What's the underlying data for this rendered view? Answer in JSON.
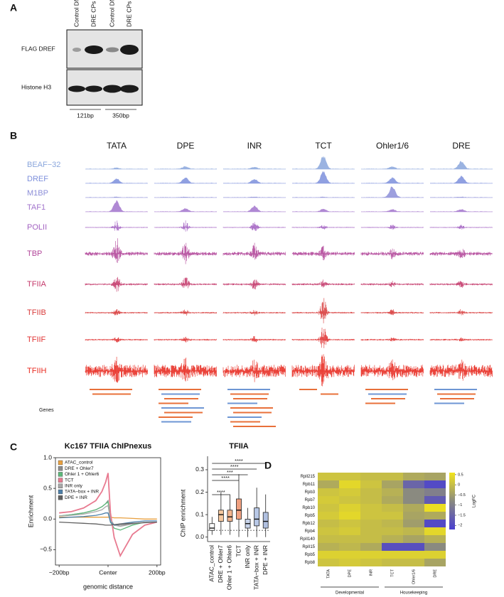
{
  "panel_labels": [
    "A",
    "B",
    "C",
    "D"
  ],
  "panel_a": {
    "lanes": [
      "Control DNA",
      "DRE CPs",
      "Control DNA",
      "DRE CPs"
    ],
    "rows": [
      "FLAG DREF",
      "Histone H3"
    ],
    "sizes": [
      "121bp",
      "350bp"
    ]
  },
  "panel_b": {
    "columns": [
      "TATA",
      "DPE",
      "INR",
      "TCT",
      "Ohler1/6",
      "DRE"
    ],
    "tracks": [
      {
        "name": "BEAF−32",
        "color": "#8aa6dc",
        "peaks": [
          0.1,
          0.2,
          0.15,
          1.0,
          0.2,
          0.6
        ]
      },
      {
        "name": "DREF",
        "color": "#7d8fdc",
        "peaks": [
          0.4,
          0.5,
          0.35,
          1.0,
          0.5,
          0.6
        ]
      },
      {
        "name": "M1BP",
        "color": "#8c8ed8",
        "peaks": [
          0.05,
          0.05,
          0.05,
          0.05,
          1.0,
          0.05
        ]
      },
      {
        "name": "TAF1",
        "color": "#a274cc",
        "peaks": [
          1.0,
          0.3,
          0.5,
          0.25,
          0.2,
          0.2
        ]
      },
      {
        "name": "POLII",
        "color": "#a362c2",
        "peaks": [
          0.8,
          0.8,
          0.7,
          0.3,
          0.3,
          0.3
        ]
      },
      {
        "name": "TBP",
        "color": "#b2479a",
        "peaks": [
          1.0,
          0.7,
          0.6,
          0.4,
          0.3,
          0.3
        ]
      },
      {
        "name": "TFIIA",
        "color": "#c4386a",
        "peaks": [
          0.8,
          0.7,
          0.5,
          0.3,
          0.2,
          0.3
        ]
      },
      {
        "name": "TFIIB",
        "color": "#d83a3a",
        "peaks": [
          0.2,
          0.2,
          0.2,
          1.0,
          0.2,
          0.2
        ]
      },
      {
        "name": "TFIIF",
        "color": "#e03232",
        "peaks": [
          0.2,
          0.2,
          0.2,
          1.0,
          0.1,
          0.1
        ]
      },
      {
        "name": "TFIIH",
        "color": "#e82a20",
        "peaks": [
          0.6,
          0.5,
          0.4,
          1.0,
          0.4,
          0.4
        ]
      }
    ],
    "genes_label": "Genes"
  },
  "chart_data": [
    {
      "type": "line",
      "title": "Kc167 TFIIA ChIPnexus",
      "xlabel": "genomic distance",
      "ylabel": "Enrichment",
      "x": [
        -200,
        -150,
        -100,
        -50,
        -25,
        -10,
        0,
        10,
        25,
        50,
        100,
        150,
        200
      ],
      "xlim": [
        -215,
        215
      ],
      "xticks": [
        {
          "value": -200,
          "label": "−200bp"
        },
        {
          "value": 0,
          "label": "Center"
        },
        {
          "value": 200,
          "label": "200bp"
        }
      ],
      "ylim": [
        -0.75,
        1.0
      ],
      "yticks": [
        {
          "value": -0.5,
          "label": "−0.5"
        },
        {
          "value": 0,
          "label": "0.0"
        },
        0.5,
        {
          "value": 1,
          "label": "1.0"
        }
      ],
      "series": [
        {
          "name": "ATAC_control",
          "color": "#e8a040",
          "values": [
            0.03,
            0.03,
            0.03,
            0.03,
            0.03,
            0.03,
            0.03,
            0.03,
            0.02,
            0.02,
            0.01,
            0.0,
            0.0
          ]
        },
        {
          "name": "DRE + Ohler7",
          "color": "#8c8c8c",
          "values": [
            0.05,
            0.07,
            0.1,
            0.15,
            0.2,
            0.25,
            0.3,
            0.0,
            -0.1,
            -0.1,
            -0.08,
            -0.05,
            -0.05
          ]
        },
        {
          "name": "Ohler 1 + Ohler6",
          "color": "#5cb87a",
          "values": [
            0.05,
            0.07,
            0.1,
            0.15,
            0.2,
            0.25,
            0.28,
            -0.05,
            -0.15,
            -0.18,
            -0.1,
            -0.05,
            -0.05
          ]
        },
        {
          "name": "TCT",
          "color": "#e87a90",
          "values": [
            0.1,
            0.12,
            0.18,
            0.3,
            0.45,
            0.6,
            0.75,
            0.1,
            -0.3,
            -0.6,
            -0.25,
            -0.1,
            -0.05
          ]
        },
        {
          "name": "INR only",
          "color": "#a8a8a8",
          "values": [
            0.05,
            0.06,
            0.08,
            0.12,
            0.15,
            0.2,
            0.22,
            -0.02,
            -0.1,
            -0.12,
            -0.08,
            -0.05,
            -0.05
          ]
        },
        {
          "name": "TATA−box + INR",
          "color": "#4d7fa8",
          "values": [
            0.02,
            0.03,
            0.04,
            0.06,
            0.08,
            0.1,
            0.1,
            -0.05,
            -0.1,
            -0.08,
            -0.05,
            -0.03,
            -0.03
          ]
        },
        {
          "name": "DPE + INR",
          "color": "#606060",
          "values": [
            -0.05,
            -0.06,
            -0.07,
            -0.08,
            -0.09,
            -0.1,
            -0.1,
            -0.1,
            -0.09,
            -0.08,
            -0.07,
            -0.06,
            -0.05
          ]
        }
      ]
    },
    {
      "type": "box",
      "title": "TFIIA",
      "ylabel": "ChIP enrichment",
      "categories": [
        "ATAC_control",
        "DRE + Ohler7",
        "Ohler 1 + Ohler6",
        "TCT",
        "INR only",
        "TATA−box + INR",
        "DPE + INR"
      ],
      "colors": [
        "#ffffff",
        "#f6c9a0",
        "#f3b58e",
        "#f0a080",
        "#c8d4ea",
        "#b8c8e6",
        "#b0c0e0"
      ],
      "low": [
        0.01,
        0.01,
        0.01,
        0.0,
        0.0,
        0.0,
        0.0
      ],
      "q1": [
        0.03,
        0.07,
        0.07,
        0.08,
        0.04,
        0.05,
        0.04
      ],
      "median": [
        0.04,
        0.1,
        0.09,
        0.12,
        0.06,
        0.08,
        0.07
      ],
      "q3": [
        0.06,
        0.12,
        0.12,
        0.17,
        0.08,
        0.13,
        0.11
      ],
      "high": [
        0.09,
        0.2,
        0.19,
        0.28,
        0.13,
        0.22,
        0.19
      ],
      "ref_line": 0.03,
      "ylim": [
        -0.02,
        0.36
      ],
      "yticks": [
        {
          "value": 0,
          "label": "0.0"
        },
        0.1,
        0.2,
        0.3
      ],
      "significance": [
        "****",
        "****",
        "***",
        "****",
        "****"
      ]
    },
    {
      "type": "heatmap",
      "x": [
        "TATA",
        "DPE",
        "INR",
        "TCT",
        "Ohler1/6",
        "DRE"
      ],
      "y": [
        "Rpll215",
        "Rpb11",
        "Rpb3",
        "Rpb7",
        "Rpb10",
        "Rpb5",
        "Rpb12",
        "Rpb4",
        "RpII140",
        "RpII15",
        "Rpb5",
        "Rpb8"
      ],
      "values": [
        [
          0.1,
          0.1,
          0.0,
          0.0,
          -0.3,
          -0.4
        ],
        [
          -0.3,
          0.4,
          0.1,
          -0.4,
          -1.5,
          -2.0
        ],
        [
          0.1,
          0.2,
          0.0,
          -0.2,
          -0.8,
          -1.0
        ],
        [
          0.2,
          0.1,
          0.0,
          -0.3,
          -0.8,
          -1.7
        ],
        [
          0.1,
          0.3,
          0.1,
          0.0,
          -0.3,
          0.5
        ],
        [
          0.2,
          0.4,
          0.1,
          0.1,
          -0.4,
          -0.3
        ],
        [
          0.0,
          0.1,
          0.0,
          -0.1,
          -0.5,
          -2.0
        ],
        [
          0.1,
          0.2,
          0.0,
          0.0,
          -0.1,
          0.4
        ],
        [
          0.0,
          0.0,
          0.0,
          -0.2,
          -0.4,
          -0.2
        ],
        [
          -0.2,
          -0.1,
          -0.3,
          -1.9,
          -1.9,
          -0.8
        ],
        [
          0.3,
          0.3,
          0.3,
          0.3,
          0.3,
          0.3
        ],
        [
          0.1,
          0.2,
          0.1,
          0.0,
          0.0,
          -0.4
        ]
      ],
      "groups": [
        "Developmental",
        "Housekeeping"
      ],
      "colorbar_label": "LogFC",
      "colormap": [
        "#4a3fd0",
        "#8a8a80",
        "#f2e41c"
      ],
      "clim": [
        -2.2,
        0.6
      ],
      "cticks": [
        0.5,
        0,
        {
          "value": -0.5,
          "label": "−0.5"
        },
        {
          "value": -1,
          "label": "−1"
        },
        {
          "value": -1.5,
          "label": "−1.5"
        },
        {
          "value": -2,
          "label": "−2"
        }
      ]
    }
  ]
}
